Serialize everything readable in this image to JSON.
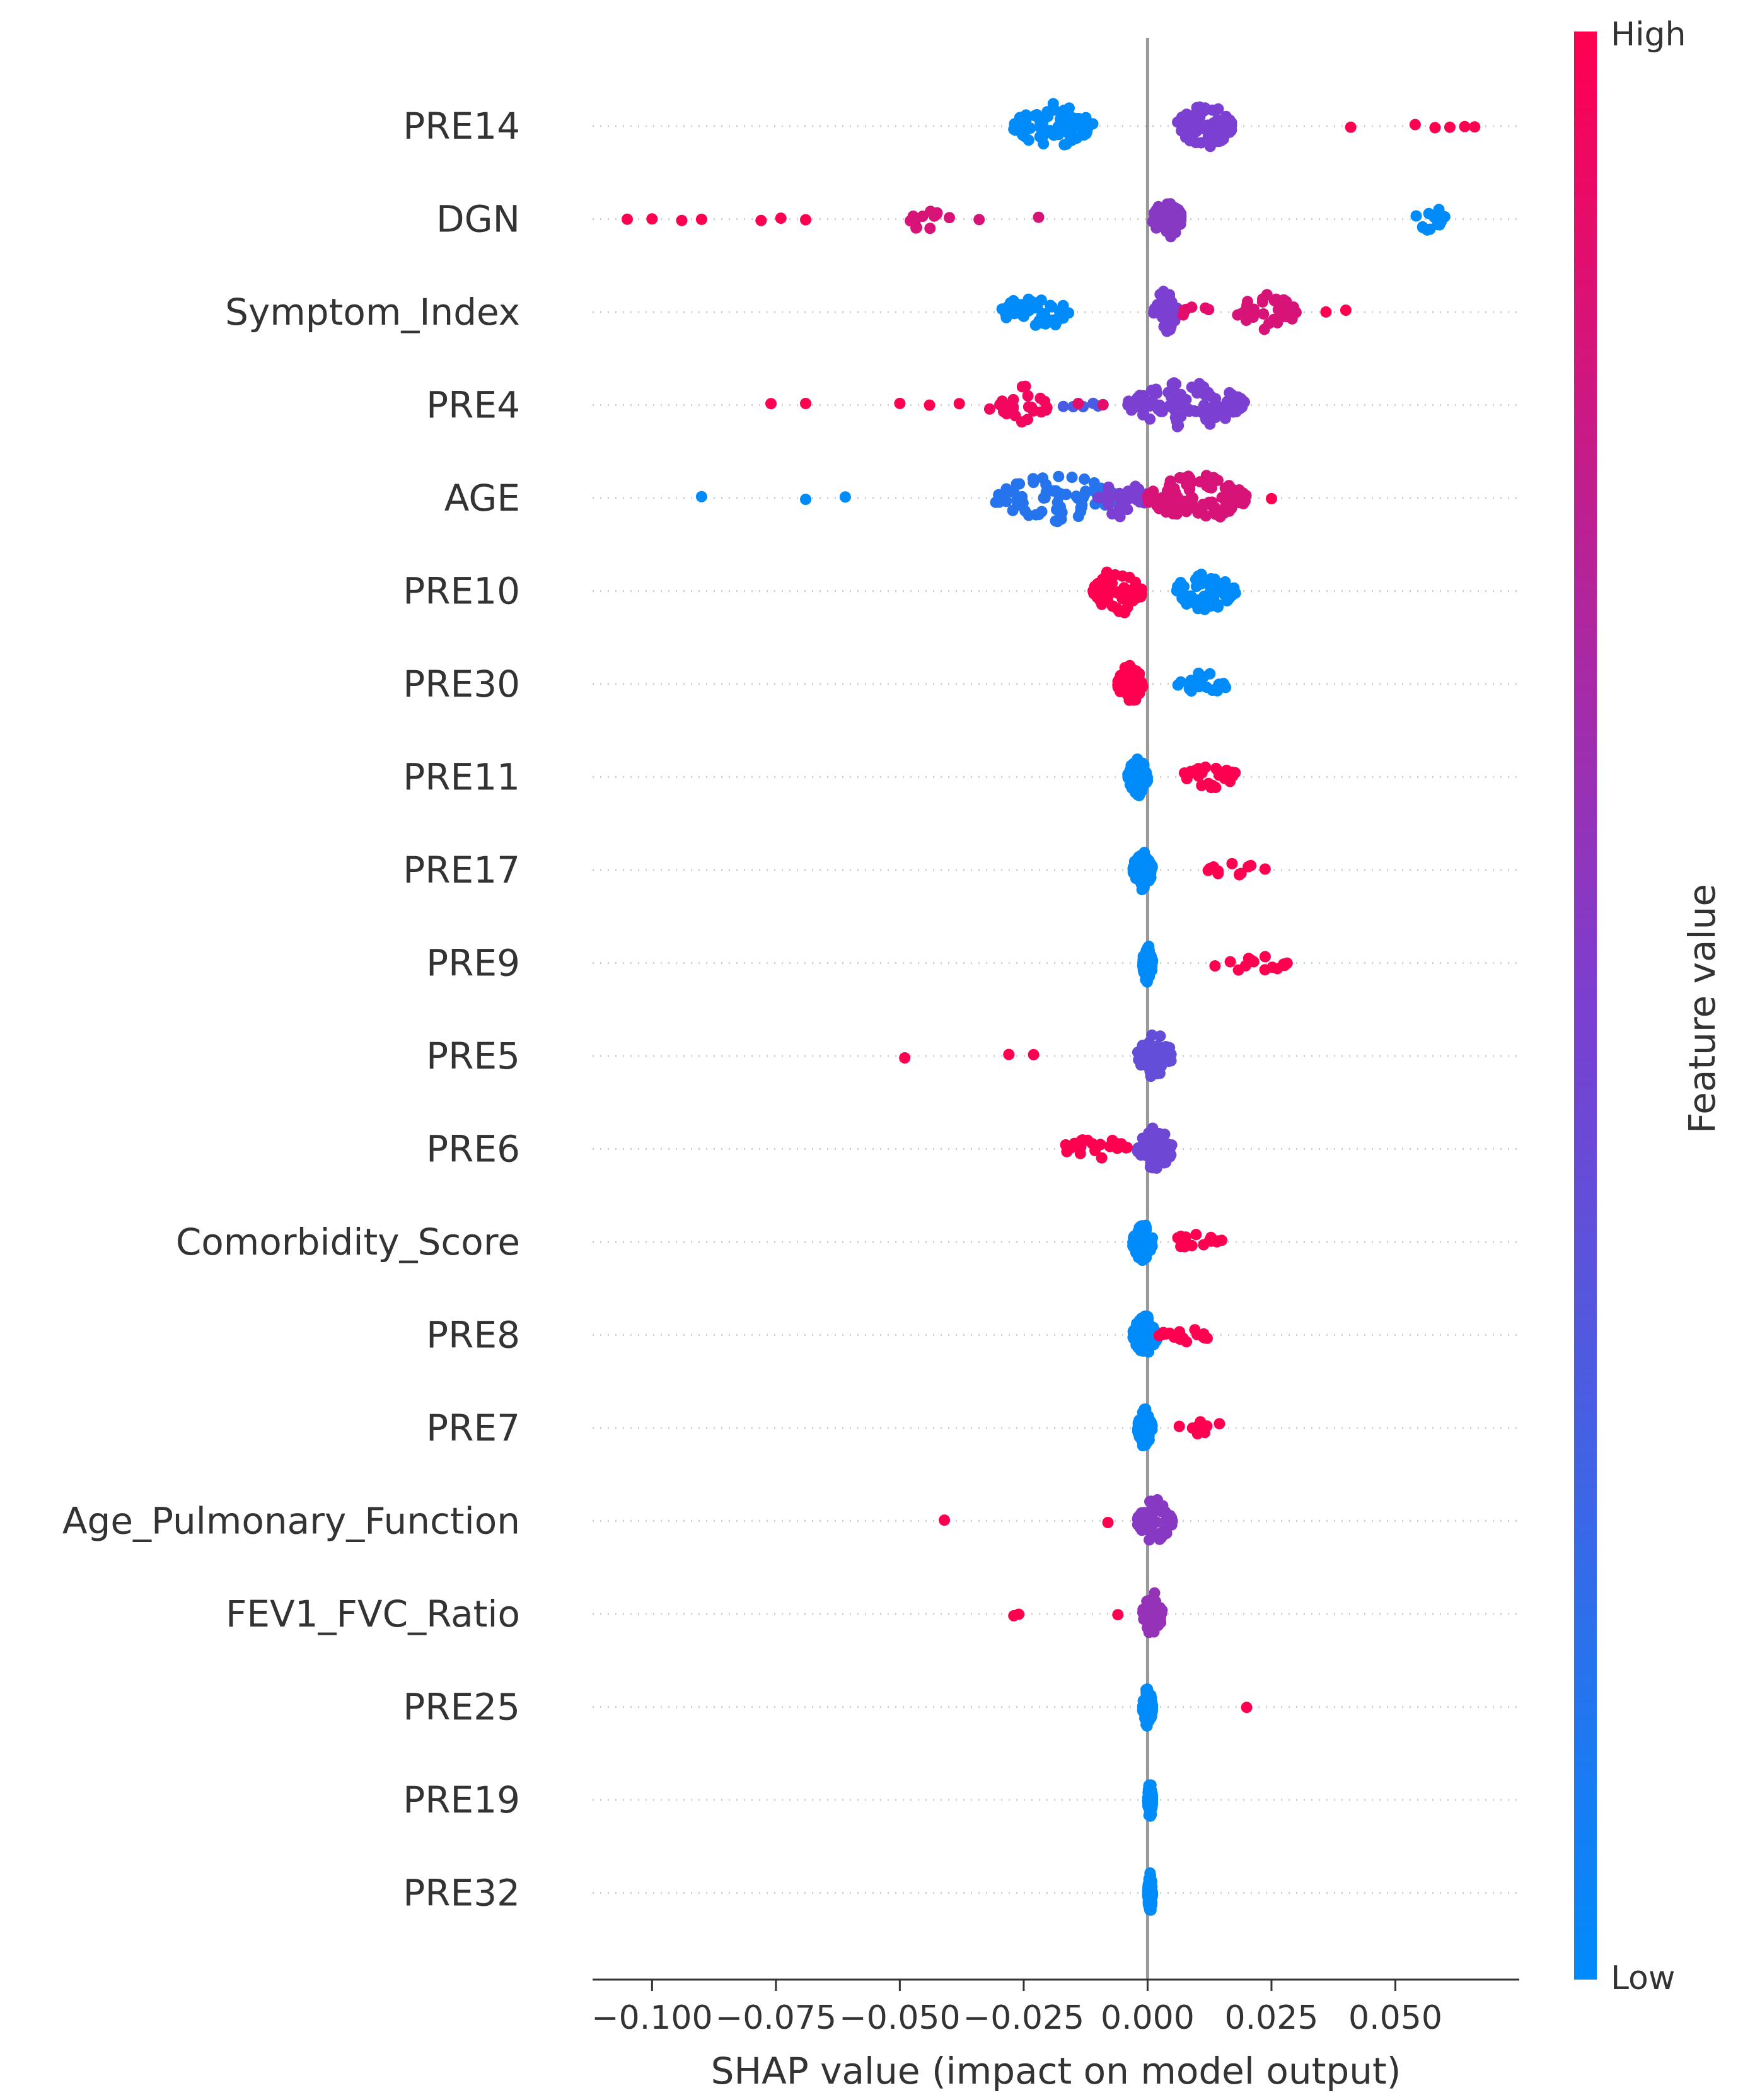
{
  "chart_data": {
    "type": "scatter",
    "subtype": "shap-beeswarm",
    "xlabel": "SHAP value (impact on model output)",
    "xlim": [
      -0.112,
      0.075
    ],
    "xticks": [
      -0.1,
      -0.075,
      -0.05,
      -0.025,
      0.0,
      0.025,
      0.05
    ],
    "xtick_labels": [
      "−0.100",
      "−0.075",
      "−0.050",
      "−0.025",
      "0.000",
      "0.025",
      "0.050"
    ],
    "colorbar": {
      "title": "Feature value",
      "high_label": "High",
      "low_label": "Low",
      "high_color": "#ff0051",
      "low_color": "#008bfb"
    },
    "features": [
      {
        "name": "PRE14",
        "groups": [
          {
            "min": -0.027,
            "max": -0.011,
            "feature_value": 0.0,
            "count": 70,
            "spread": 1.0
          },
          {
            "min": 0.006,
            "max": 0.017,
            "feature_value": 0.5,
            "count": 75,
            "spread": 1.0
          },
          {
            "points": [
              0.041,
              0.054,
              0.058,
              0.061,
              0.064,
              0.066
            ],
            "feature_value": 1.0
          }
        ]
      },
      {
        "name": "DGN",
        "groups": [
          {
            "points": [
              -0.105,
              -0.1,
              -0.094,
              -0.09,
              -0.078,
              -0.074,
              -0.069
            ],
            "feature_value": 1.0
          },
          {
            "min": -0.048,
            "max": -0.042,
            "feature_value": 0.85,
            "count": 12,
            "spread": 0.5
          },
          {
            "points": [
              -0.04,
              -0.034,
              -0.022
            ],
            "feature_value": 0.85
          },
          {
            "min": 0.001,
            "max": 0.007,
            "feature_value": 0.55,
            "count": 50,
            "spread": 0.8
          },
          {
            "min": 0.054,
            "max": 0.06,
            "feature_value": 0.0,
            "count": 14,
            "spread": 0.5
          }
        ]
      },
      {
        "name": "Symptom_Index",
        "groups": [
          {
            "min": -0.03,
            "max": -0.015,
            "feature_value": 0.0,
            "count": 40,
            "spread": 0.7
          },
          {
            "min": 0.001,
            "max": 0.006,
            "feature_value": 0.5,
            "count": 40,
            "spread": 0.9
          },
          {
            "min": 0.007,
            "max": 0.014,
            "feature_value": 0.9,
            "count": 6,
            "spread": 0.2
          },
          {
            "min": 0.018,
            "max": 0.03,
            "feature_value": 0.85,
            "count": 36,
            "spread": 0.7
          },
          {
            "points": [
              0.036,
              0.04
            ],
            "feature_value": 1.0
          }
        ]
      },
      {
        "name": "PRE4",
        "groups": [
          {
            "points": [
              -0.076,
              -0.069,
              -0.05,
              -0.044,
              -0.038
            ],
            "feature_value": 1.0
          },
          {
            "min": -0.032,
            "max": -0.02,
            "feature_value": 0.95,
            "count": 24,
            "spread": 0.8
          },
          {
            "points": [
              -0.017,
              -0.015,
              -0.013,
              -0.011,
              -0.01,
              -0.009,
              -0.003
            ],
            "feature_value": 0.3
          },
          {
            "points": [
              -0.014,
              -0.009
            ],
            "feature_value": 0.9
          },
          {
            "min": -0.004,
            "max": 0.02,
            "feature_value": 0.5,
            "count": 120,
            "spread": 1.0
          }
        ]
      },
      {
        "name": "AGE",
        "groups": [
          {
            "points": [
              -0.09,
              -0.069,
              -0.061
            ],
            "feature_value": 0.0
          },
          {
            "min": -0.031,
            "max": -0.006,
            "feature_value": 0.15,
            "count": 70,
            "spread": 1.0
          },
          {
            "min": -0.01,
            "max": 0.0,
            "feature_value": 0.5,
            "count": 30,
            "spread": 0.8
          },
          {
            "min": 0.0,
            "max": 0.02,
            "feature_value": 0.85,
            "count": 110,
            "spread": 1.0
          },
          {
            "points": [
              0.025
            ],
            "feature_value": 1.0
          }
        ]
      },
      {
        "name": "PRE10",
        "groups": [
          {
            "min": -0.011,
            "max": -0.001,
            "feature_value": 1.0,
            "count": 70,
            "spread": 1.0
          },
          {
            "min": 0.005,
            "max": 0.018,
            "feature_value": 0.0,
            "count": 60,
            "spread": 0.8
          }
        ]
      },
      {
        "name": "PRE30",
        "groups": [
          {
            "min": -0.006,
            "max": -0.001,
            "feature_value": 1.0,
            "count": 60,
            "spread": 0.8
          },
          {
            "min": 0.006,
            "max": 0.016,
            "feature_value": 0.0,
            "count": 25,
            "spread": 0.4
          }
        ]
      },
      {
        "name": "PRE11",
        "groups": [
          {
            "min": -0.004,
            "max": 0.0,
            "feature_value": 0.0,
            "count": 70,
            "spread": 0.8
          },
          {
            "min": 0.007,
            "max": 0.018,
            "feature_value": 1.0,
            "count": 25,
            "spread": 0.4
          }
        ]
      },
      {
        "name": "PRE17",
        "groups": [
          {
            "min": -0.003,
            "max": 0.001,
            "feature_value": 0.0,
            "count": 70,
            "spread": 0.8
          },
          {
            "min": 0.012,
            "max": 0.024,
            "feature_value": 1.0,
            "count": 12,
            "spread": 0.2
          }
        ]
      },
      {
        "name": "PRE9",
        "groups": [
          {
            "min": -0.001,
            "max": 0.001,
            "feature_value": 0.0,
            "count": 70,
            "spread": 0.8
          },
          {
            "min": 0.013,
            "max": 0.03,
            "feature_value": 1.0,
            "count": 14,
            "spread": 0.2
          }
        ]
      },
      {
        "name": "PRE5",
        "groups": [
          {
            "points": [
              -0.049,
              -0.028,
              -0.023
            ],
            "feature_value": 1.0
          },
          {
            "min": -0.002,
            "max": 0.005,
            "feature_value": 0.4,
            "count": 60,
            "spread": 0.9
          }
        ]
      },
      {
        "name": "PRE6",
        "groups": [
          {
            "min": -0.017,
            "max": -0.004,
            "feature_value": 1.0,
            "count": 22,
            "spread": 0.4
          },
          {
            "min": -0.002,
            "max": 0.005,
            "feature_value": 0.45,
            "count": 60,
            "spread": 0.9
          }
        ]
      },
      {
        "name": "Comorbidity_Score",
        "groups": [
          {
            "min": -0.003,
            "max": 0.001,
            "feature_value": 0.0,
            "count": 70,
            "spread": 0.8
          },
          {
            "min": 0.005,
            "max": 0.015,
            "feature_value": 1.0,
            "count": 15,
            "spread": 0.3
          }
        ]
      },
      {
        "name": "PRE8",
        "groups": [
          {
            "min": -0.003,
            "max": 0.002,
            "feature_value": 0.0,
            "count": 70,
            "spread": 0.8
          },
          {
            "min": 0.002,
            "max": 0.013,
            "feature_value": 1.0,
            "count": 16,
            "spread": 0.2
          }
        ]
      },
      {
        "name": "PRE7",
        "groups": [
          {
            "min": -0.002,
            "max": 0.001,
            "feature_value": 0.0,
            "count": 70,
            "spread": 0.8
          },
          {
            "min": 0.004,
            "max": 0.015,
            "feature_value": 1.0,
            "count": 12,
            "spread": 0.2
          }
        ]
      },
      {
        "name": "Age_Pulmonary_Function",
        "groups": [
          {
            "points": [
              -0.041,
              -0.008
            ],
            "feature_value": 1.0
          },
          {
            "min": -0.002,
            "max": 0.005,
            "feature_value": 0.55,
            "count": 60,
            "spread": 0.9
          }
        ]
      },
      {
        "name": "FEV1_FVC_Ratio",
        "groups": [
          {
            "points": [
              -0.027,
              -0.026,
              -0.006
            ],
            "feature_value": 1.0
          },
          {
            "min": -0.001,
            "max": 0.003,
            "feature_value": 0.6,
            "count": 55,
            "spread": 0.9
          }
        ]
      },
      {
        "name": "PRE25",
        "groups": [
          {
            "min": -0.001,
            "max": 0.001,
            "feature_value": 0.0,
            "count": 65,
            "spread": 0.8
          },
          {
            "points": [
              0.02
            ],
            "feature_value": 1.0
          }
        ]
      },
      {
        "name": "PRE19",
        "groups": [
          {
            "min": 0.0,
            "max": 0.001,
            "feature_value": 0.0,
            "count": 70,
            "spread": 0.8
          }
        ]
      },
      {
        "name": "PRE32",
        "groups": [
          {
            "min": 0.0,
            "max": 0.001,
            "feature_value": 0.0,
            "count": 70,
            "spread": 0.8
          }
        ]
      }
    ]
  }
}
